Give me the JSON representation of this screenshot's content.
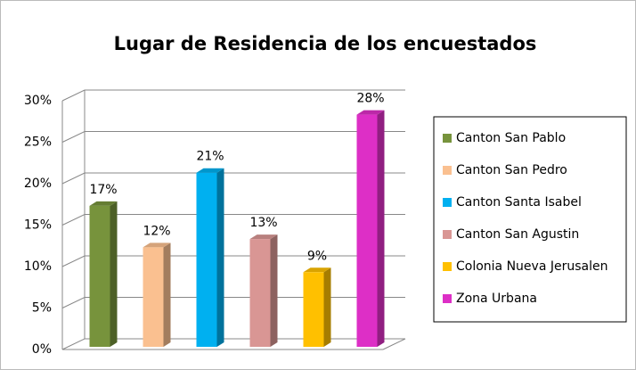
{
  "chart_data": {
    "type": "bar3d",
    "title": "Lugar de Residencia de los encuestados",
    "categories": [
      null
    ],
    "series": [
      {
        "name": "Canton San Pablo",
        "color": "#77933c",
        "values": [
          17
        ],
        "value_labels": [
          "17%"
        ]
      },
      {
        "name": "Canton San Pedro",
        "color": "#fac090",
        "values": [
          12
        ],
        "value_labels": [
          "12%"
        ]
      },
      {
        "name": "Canton Santa Isabel",
        "color": "#00b0f0",
        "values": [
          21
        ],
        "value_labels": [
          "21%"
        ]
      },
      {
        "name": "Canton San Agustin",
        "color": "#d99694",
        "values": [
          13
        ],
        "value_labels": [
          "13%"
        ]
      },
      {
        "name": "Colonia Nueva Jerusalen",
        "color": "#ffc000",
        "values": [
          9
        ],
        "value_labels": [
          "9%"
        ]
      },
      {
        "name": "Zona Urbana",
        "color": "#dd2fc6",
        "values": [
          28
        ],
        "value_labels": [
          "28%"
        ]
      }
    ],
    "ylim": [
      0,
      30
    ],
    "yticks": [
      {
        "value": 0,
        "label": "0%"
      },
      {
        "value": 5,
        "label": "5%"
      },
      {
        "value": 10,
        "label": "10%"
      },
      {
        "value": 15,
        "label": "15%"
      },
      {
        "value": 20,
        "label": "20%"
      },
      {
        "value": 25,
        "label": "25%"
      },
      {
        "value": 30,
        "label": "30%"
      }
    ],
    "grid": true,
    "legend": "right"
  }
}
